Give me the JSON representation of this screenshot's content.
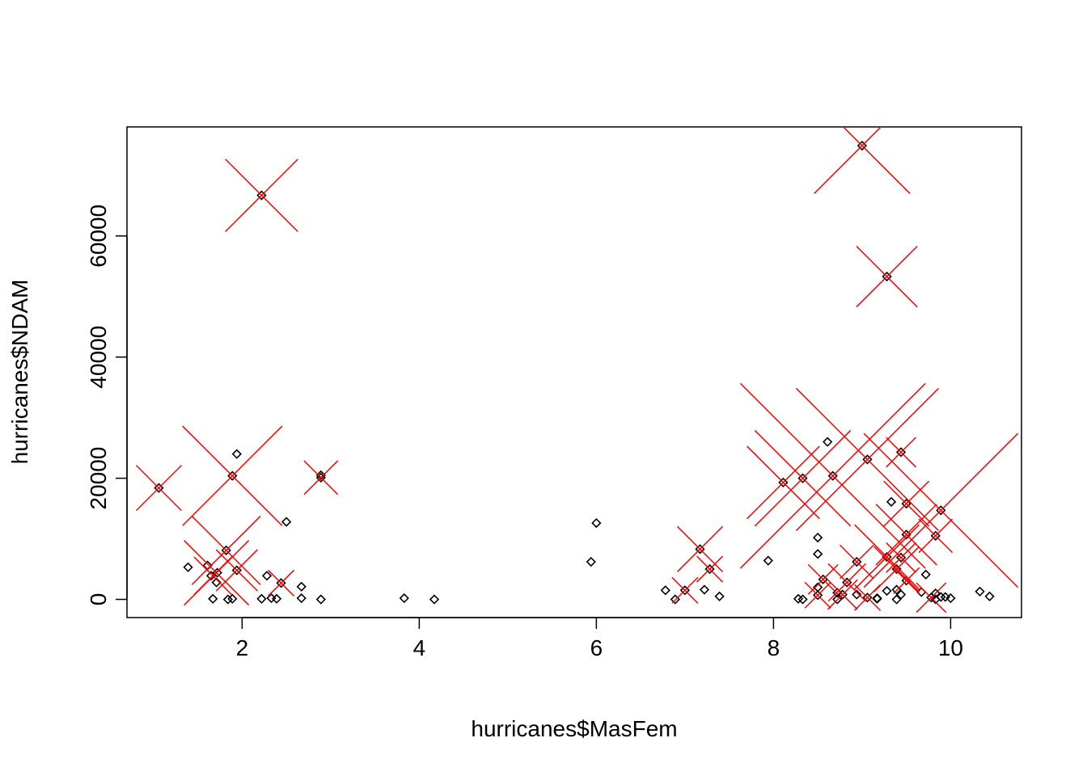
{
  "chart_data": {
    "type": "scatter",
    "title": "",
    "xlabel": "hurricanes$MasFem",
    "ylabel": "hurricanes$NDAM",
    "xlim": [
      0.7,
      10.8
    ],
    "ylim": [
      -3000,
      78000
    ],
    "x_ticks": [
      2,
      4,
      6,
      8,
      10
    ],
    "x_tick_labels": [
      "2",
      "4",
      "6",
      "8",
      "10"
    ],
    "y_ticks": [
      0,
      20000,
      40000,
      60000
    ],
    "y_tick_labels": [
      "0",
      "20000",
      "40000",
      "60000"
    ],
    "grid": false,
    "legend": "none",
    "marker_color": "#000000",
    "overlay_color": "#ff0000",
    "series": [
      {
        "marker": "diamond-outline",
        "points": [
          [
            1.06,
            18400
          ],
          [
            1.39,
            5300
          ],
          [
            1.61,
            5600
          ],
          [
            1.65,
            3900
          ],
          [
            1.67,
            100
          ],
          [
            1.71,
            2800
          ],
          [
            1.72,
            4400
          ],
          [
            1.82,
            8100
          ],
          [
            1.84,
            0
          ],
          [
            1.89,
            20400
          ],
          [
            1.89,
            100
          ],
          [
            1.94,
            4800
          ],
          [
            1.94,
            24000
          ],
          [
            2.22,
            100
          ],
          [
            2.22,
            66700
          ],
          [
            2.28,
            3900
          ],
          [
            2.33,
            200
          ],
          [
            2.39,
            100
          ],
          [
            2.44,
            2700
          ],
          [
            2.5,
            12800
          ],
          [
            2.67,
            200
          ],
          [
            2.67,
            2100
          ],
          [
            2.89,
            20500
          ],
          [
            2.89,
            20100
          ],
          [
            2.89,
            0
          ],
          [
            3.83,
            200
          ],
          [
            4.17,
            0
          ],
          [
            5.94,
            6200
          ],
          [
            6.0,
            12600
          ],
          [
            6.78,
            1500
          ],
          [
            6.89,
            0
          ],
          [
            7.0,
            1500
          ],
          [
            7.17,
            8300
          ],
          [
            7.22,
            1600
          ],
          [
            7.28,
            5000
          ],
          [
            7.39,
            500
          ],
          [
            7.94,
            6400
          ],
          [
            8.11,
            19300
          ],
          [
            8.28,
            100
          ],
          [
            8.33,
            20000
          ],
          [
            8.33,
            0
          ],
          [
            8.5,
            2000
          ],
          [
            8.5,
            700
          ],
          [
            8.5,
            7500
          ],
          [
            8.5,
            10200
          ],
          [
            8.56,
            3300
          ],
          [
            8.61,
            26000
          ],
          [
            8.67,
            20400
          ],
          [
            8.72,
            0
          ],
          [
            8.72,
            1100
          ],
          [
            8.78,
            800
          ],
          [
            8.83,
            2800
          ],
          [
            8.94,
            6200
          ],
          [
            8.94,
            800
          ],
          [
            9.0,
            74900
          ],
          [
            9.06,
            23100
          ],
          [
            9.06,
            300
          ],
          [
            9.17,
            200
          ],
          [
            9.17,
            100
          ],
          [
            9.28,
            7000
          ],
          [
            9.28,
            53300
          ],
          [
            9.28,
            1400
          ],
          [
            9.33,
            16100
          ],
          [
            9.39,
            5000
          ],
          [
            9.39,
            1600
          ],
          [
            9.39,
            0
          ],
          [
            9.44,
            6900
          ],
          [
            9.44,
            24300
          ],
          [
            9.5,
            15800
          ],
          [
            9.5,
            10700
          ],
          [
            9.5,
            3100
          ],
          [
            9.44,
            800
          ],
          [
            9.67,
            1200
          ],
          [
            9.72,
            4100
          ],
          [
            9.78,
            300
          ],
          [
            9.83,
            10500
          ],
          [
            9.83,
            0
          ],
          [
            9.83,
            1000
          ],
          [
            9.89,
            14700
          ],
          [
            9.89,
            400
          ],
          [
            9.94,
            400
          ],
          [
            10.0,
            200
          ],
          [
            10.33,
            1300
          ],
          [
            10.44,
            500
          ]
        ]
      },
      {
        "marker": "x-cross-sized",
        "points": [
          [
            1.06,
            18400,
            1.0
          ],
          [
            1.82,
            8100,
            1.6
          ],
          [
            1.89,
            20400,
            2.4
          ],
          [
            2.22,
            66700,
            1.7
          ],
          [
            1.94,
            4800,
            0.9
          ],
          [
            1.71,
            4400,
            1.5
          ],
          [
            1.67,
            3900,
            0.8
          ],
          [
            2.89,
            20100,
            0.7
          ],
          [
            2.44,
            2700,
            0.5
          ],
          [
            7.17,
            8300,
            1.0
          ],
          [
            7.28,
            5000,
            0.5
          ],
          [
            7.0,
            1500,
            0.5
          ],
          [
            8.11,
            19300,
            1.7
          ],
          [
            8.33,
            20000,
            2.3
          ],
          [
            8.67,
            20400,
            4.6
          ],
          [
            9.0,
            74900,
            2.3
          ],
          [
            9.06,
            23100,
            3.5
          ],
          [
            9.28,
            53300,
            1.4
          ],
          [
            9.89,
            14700,
            3.8
          ],
          [
            9.5,
            15800,
            1.0
          ],
          [
            9.44,
            24300,
            0.6
          ],
          [
            9.39,
            5000,
            1.0
          ],
          [
            9.28,
            7000,
            1.5
          ],
          [
            9.5,
            10700,
            1.4
          ],
          [
            9.83,
            10500,
            0.7
          ],
          [
            8.94,
            6200,
            0.7
          ],
          [
            8.83,
            2800,
            0.8
          ],
          [
            8.56,
            3300,
            0.6
          ],
          [
            8.78,
            800,
            0.6
          ],
          [
            9.78,
            300,
            0.6
          ],
          [
            9.5,
            3100,
            0.5
          ],
          [
            9.44,
            6900,
            0.6
          ],
          [
            8.5,
            700,
            0.5
          ],
          [
            9.06,
            300,
            0.5
          ]
        ]
      }
    ]
  }
}
